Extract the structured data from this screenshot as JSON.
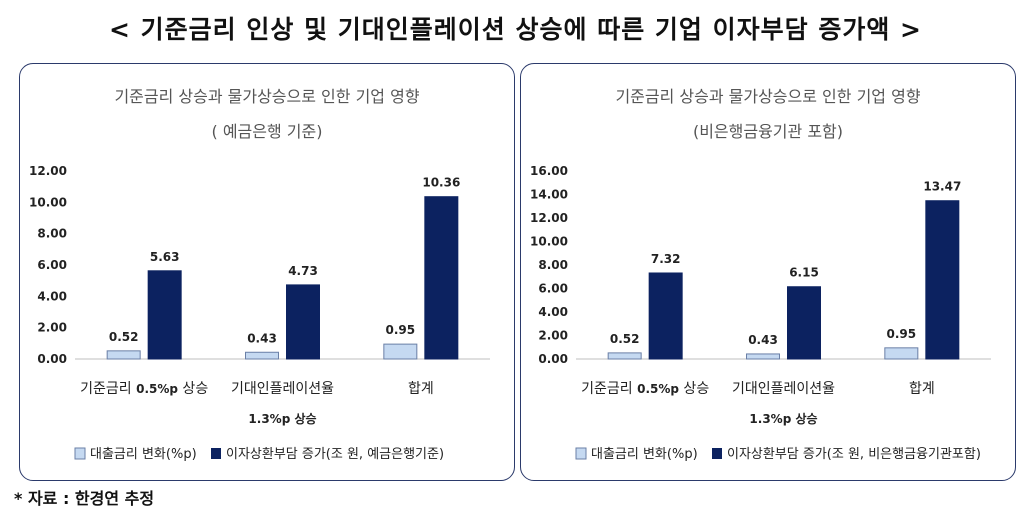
{
  "main_title": "< 기준금리 인상 및 기대인플레이션 상승에 따른 기업 이자부담 증가액 >",
  "source_note": "* 자료 : 한경연 추정",
  "colors": {
    "series1": "#c5d9f1",
    "series2": "#0c2260",
    "border": "#2b3a6b"
  },
  "chart_data": [
    {
      "type": "bar",
      "title": "기준금리 상승과 물가상승으로 인한 기업 영향",
      "subtitle": "( 예금은행 기준)",
      "categories": [
        {
          "main": "기준금리 ",
          "bold": "0.5%p",
          "tail": " 상승",
          "sub": ""
        },
        {
          "main": "기대인플레이션율",
          "bold": "",
          "tail": "",
          "sub": "1.3%p 상승"
        },
        {
          "main": "합계",
          "bold": "",
          "tail": "",
          "sub": ""
        }
      ],
      "series": [
        {
          "name": "대출금리 변화(%p)",
          "values": [
            0.52,
            0.43,
            0.95
          ]
        },
        {
          "name": "이자상환부담 증가(조 원, 예금은행기준)",
          "values": [
            5.63,
            4.73,
            10.36
          ]
        }
      ],
      "value_labels": [
        [
          "0.52",
          "0.43",
          "0.95"
        ],
        [
          "5.63",
          "4.73",
          "10.36"
        ]
      ],
      "yticks": [
        "0.00",
        "2.00",
        "4.00",
        "6.00",
        "8.00",
        "10.00",
        "12.00"
      ],
      "ylim": [
        0,
        12
      ],
      "legend_position": "bottom",
      "grid": false
    },
    {
      "type": "bar",
      "title": "기준금리 상승과 물가상승으로 인한 기업 영향",
      "subtitle": "(비은행금융기관 포함)",
      "categories": [
        {
          "main": "기준금리 ",
          "bold": "0.5%p",
          "tail": " 상승",
          "sub": ""
        },
        {
          "main": "기대인플레이션율",
          "bold": "",
          "tail": "",
          "sub": "1.3%p 상승"
        },
        {
          "main": "합계",
          "bold": "",
          "tail": "",
          "sub": ""
        }
      ],
      "series": [
        {
          "name": "대출금리 변화(%p)",
          "values": [
            0.52,
            0.43,
            0.95
          ]
        },
        {
          "name": "이자상환부담 증가(조 원, 비은행금융기관포함)",
          "values": [
            7.32,
            6.15,
            13.47
          ]
        }
      ],
      "value_labels": [
        [
          "0.52",
          "0.43",
          "0.95"
        ],
        [
          "7.32",
          "6.15",
          "13.47"
        ]
      ],
      "yticks": [
        "0.00",
        "2.00",
        "4.00",
        "6.00",
        "8.00",
        "10.00",
        "12.00",
        "14.00",
        "16.00"
      ],
      "ylim": [
        0,
        16
      ],
      "legend_position": "bottom",
      "grid": false
    }
  ]
}
